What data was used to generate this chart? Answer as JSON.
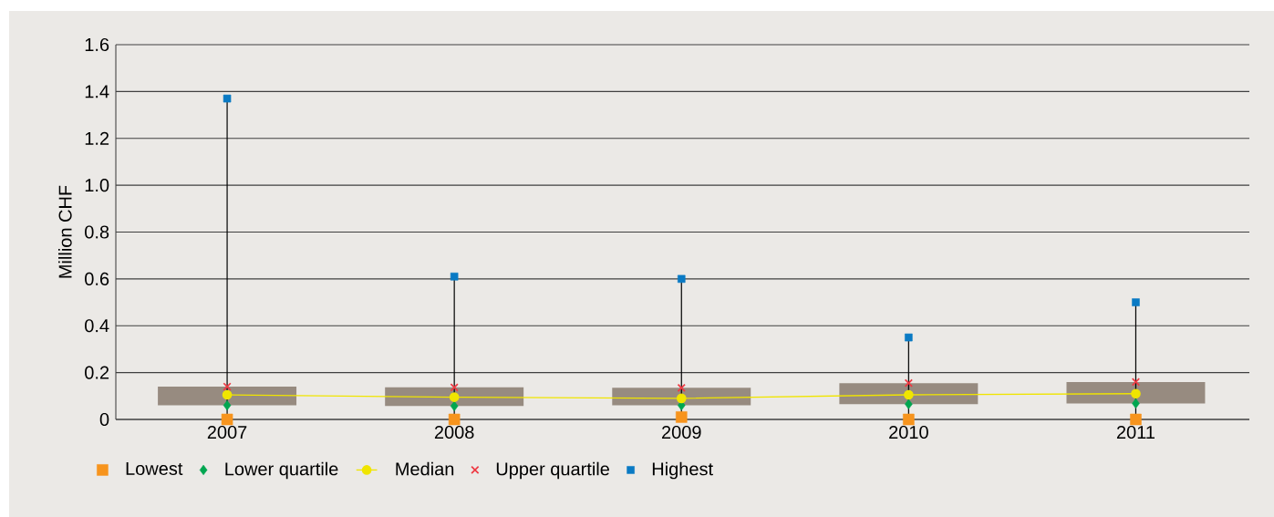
{
  "chart_data": {
    "type": "box",
    "ylabel": "Million CHF",
    "categories": [
      "2007",
      "2008",
      "2009",
      "2010",
      "2011"
    ],
    "color": "#978b80",
    "boxes": [
      {
        "low": 0.0,
        "q1": 0.06,
        "q3": 0.14,
        "high": 1.37
      },
      {
        "low": 0.0,
        "q1": 0.057,
        "q3": 0.137,
        "high": 0.61
      },
      {
        "low": 0.01,
        "q1": 0.06,
        "q3": 0.135,
        "high": 0.6
      },
      {
        "low": 0.0,
        "q1": 0.065,
        "q3": 0.155,
        "high": 0.35
      },
      {
        "low": 0.0,
        "q1": 0.068,
        "q3": 0.16,
        "high": 0.5
      }
    ],
    "series": [
      {
        "name": "Lowest",
        "type": "scatter",
        "marker": "square",
        "color": "#f7941d",
        "values": [
          0.0,
          0.0,
          0.01,
          0.0,
          0.0
        ]
      },
      {
        "name": "Lower quartile",
        "type": "scatter",
        "marker": "diamond",
        "color": "#00a650",
        "values": [
          0.06,
          0.057,
          0.06,
          0.065,
          0.068
        ]
      },
      {
        "name": "Median",
        "type": "line",
        "marker": "circle",
        "color": "#f0e500",
        "values": [
          0.105,
          0.095,
          0.09,
          0.105,
          0.11
        ]
      },
      {
        "name": "Upper quartile",
        "type": "scatter",
        "marker": "cross",
        "color": "#ee3a43",
        "values": [
          0.14,
          0.137,
          0.135,
          0.155,
          0.16
        ]
      },
      {
        "name": "Highest",
        "type": "scatter",
        "marker": "square",
        "color": "#0a7ac4",
        "values": [
          1.37,
          0.61,
          0.6,
          0.35,
          0.5
        ]
      }
    ],
    "ylim": [
      0,
      1.6
    ],
    "yticks": [
      0,
      0.2,
      0.4,
      0.6,
      0.8,
      {
        "value": 1.0,
        "label": "1.0"
      },
      1.2,
      1.4,
      1.6
    ],
    "grid": "y",
    "legend": "bottom"
  }
}
